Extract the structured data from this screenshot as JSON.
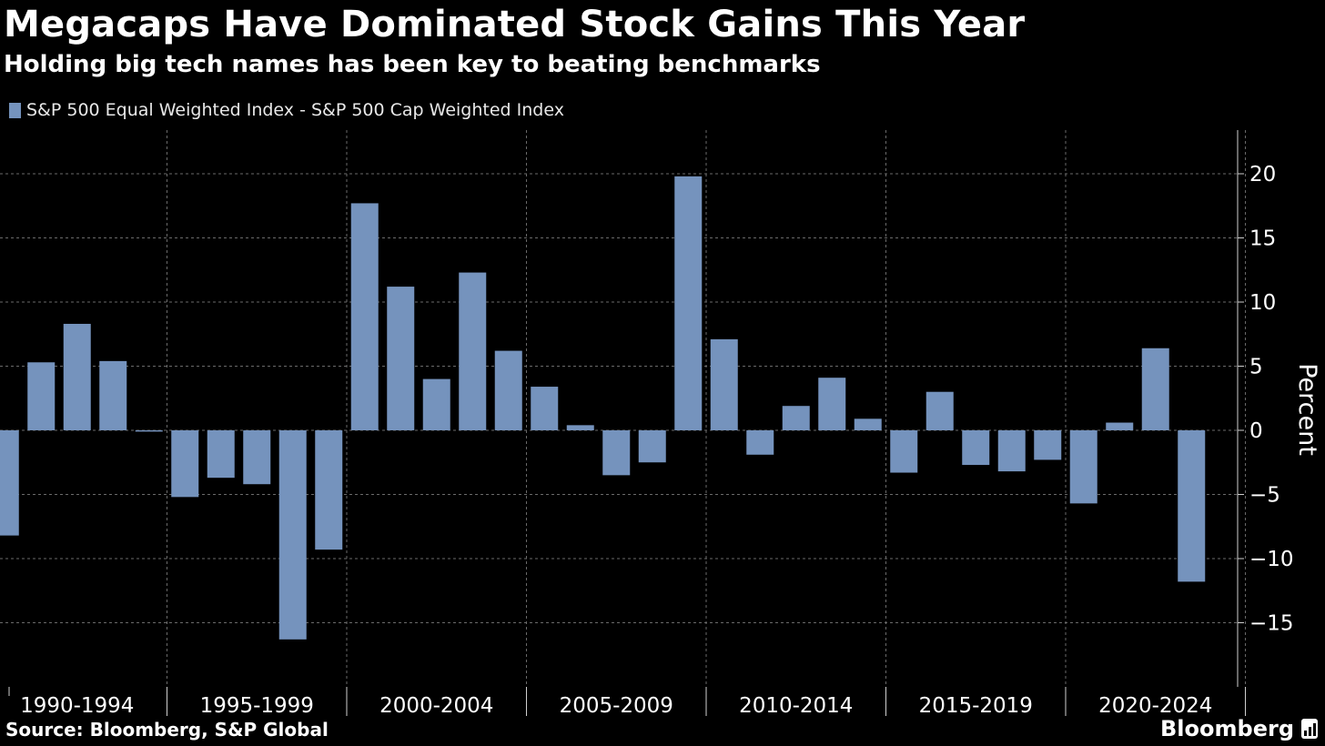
{
  "title": "Megacaps Have Dominated Stock Gains This Year",
  "subtitle": "Holding big tech names has been key to beating benchmarks",
  "footer": {
    "source": "Source: Bloomberg, S&P Global",
    "brand": "Bloomberg"
  },
  "colors": {
    "bar": "#7593bd",
    "background": "#000000",
    "grid": "#6a6a6a",
    "text": "#ffffff"
  },
  "chart_data": {
    "type": "bar",
    "x": [
      1990,
      1991,
      1992,
      1993,
      1994,
      1995,
      1996,
      1997,
      1998,
      1999,
      2000,
      2001,
      2002,
      2003,
      2004,
      2005,
      2006,
      2007,
      2008,
      2009,
      2010,
      2011,
      2012,
      2013,
      2014,
      2015,
      2016,
      2017,
      2018,
      2019,
      2020,
      2021,
      2022,
      2023,
      2024
    ],
    "series": [
      {
        "name": "S&P 500 Equal Weighted Index - S&P 500 Cap Weighted Index",
        "values": [
          -8.2,
          5.3,
          8.3,
          5.4,
          -0.1,
          -5.2,
          -3.7,
          -4.2,
          -16.3,
          -9.3,
          17.7,
          11.2,
          4.0,
          12.3,
          6.2,
          3.4,
          0.4,
          -3.5,
          -2.5,
          19.8,
          7.1,
          -1.9,
          1.9,
          4.1,
          0.9,
          -3.3,
          3.0,
          -2.7,
          -3.2,
          -2.3,
          -5.7,
          0.6,
          6.4,
          -11.8,
          null
        ]
      }
    ],
    "x_tick_labels": [
      "1990-1994",
      "1995-1999",
      "2000-2004",
      "2005-2009",
      "2010-2014",
      "2015-2019",
      "2020-2024"
    ],
    "ylabel": "Percent",
    "yticks": [
      20,
      15,
      10,
      5,
      0,
      -5,
      -10,
      -15
    ],
    "ylim": [
      -20,
      23.5
    ],
    "grid": true,
    "legend": "top-left",
    "y_axis_side": "right"
  }
}
